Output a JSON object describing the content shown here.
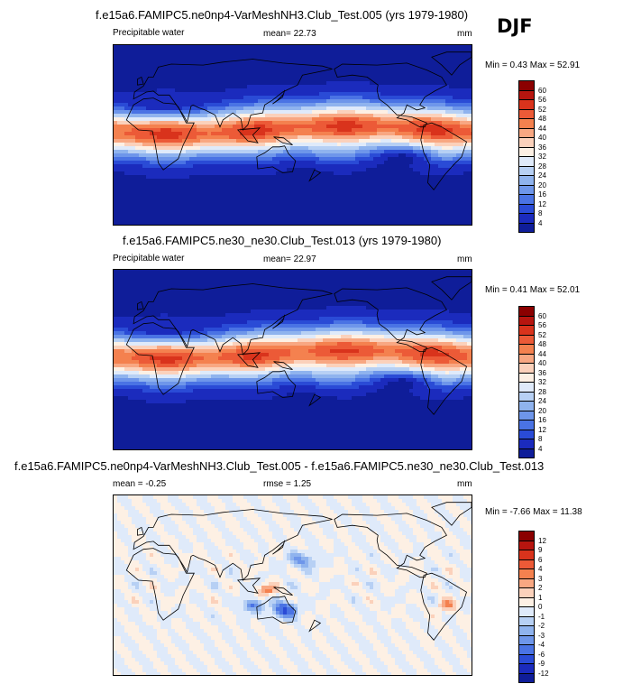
{
  "season": "DJF",
  "panels": [
    {
      "title": "f.e15a6.FAMIPC5.ne0np4-VarMeshNH3.Club_Test.005 (yrs 1979-1980)",
      "left_label": "Precipitable water",
      "mid_label": "mean=  22.73",
      "units": "mm",
      "minmax": "Min =   0.43 Max =  52.91",
      "colorbar": {
        "labels": [
          "60",
          "56",
          "52",
          "48",
          "44",
          "40",
          "36",
          "32",
          "28",
          "24",
          "20",
          "16",
          "12",
          "8",
          "4"
        ],
        "colors": [
          "#8b0000",
          "#b7150f",
          "#d9331c",
          "#ec5a37",
          "#f4814f",
          "#f8a782",
          "#fbd1bb",
          "#fdf0e4",
          "#dfeafa",
          "#b7d0f4",
          "#8fb3ee",
          "#6e96ea",
          "#4a73e4",
          "#2a4bd6",
          "#1b2bbd",
          "#0f1d99"
        ]
      }
    },
    {
      "title": "f.e15a6.FAMIPC5.ne30_ne30.Club_Test.013 (yrs 1979-1980)",
      "left_label": "Precipitable water",
      "mid_label": "mean=  22.97",
      "units": "mm",
      "minmax": "Min =   0.41 Max =  52.01",
      "colorbar": {
        "labels": [
          "60",
          "56",
          "52",
          "48",
          "44",
          "40",
          "36",
          "32",
          "28",
          "24",
          "20",
          "16",
          "12",
          "8",
          "4"
        ],
        "colors": [
          "#8b0000",
          "#b7150f",
          "#d9331c",
          "#ec5a37",
          "#f4814f",
          "#f8a782",
          "#fbd1bb",
          "#fdf0e4",
          "#dfeafa",
          "#b7d0f4",
          "#8fb3ee",
          "#6e96ea",
          "#4a73e4",
          "#2a4bd6",
          "#1b2bbd",
          "#0f1d99"
        ]
      }
    },
    {
      "title": "f.e15a6.FAMIPC5.ne0np4-VarMeshNH3.Club_Test.005 - f.e15a6.FAMIPC5.ne30_ne30.Club_Test.013",
      "left_label": "mean =  -0.25",
      "mid_label": "rmse =   1.25",
      "units": "mm",
      "minmax": "Min =  -7.66 Max =  11.38",
      "colorbar": {
        "labels": [
          "12",
          "9",
          "6",
          "4",
          "3",
          "2",
          "1",
          "0",
          "-1",
          "-2",
          "-3",
          "-4",
          "-6",
          "-9",
          "-12"
        ],
        "colors": [
          "#8b0000",
          "#b7150f",
          "#d9331c",
          "#ec5a37",
          "#f4814f",
          "#f8a782",
          "#fbd1bb",
          "#fdf0e4",
          "#dfeafa",
          "#b7d0f4",
          "#8fb3ee",
          "#6e96ea",
          "#4a73e4",
          "#2a4bd6",
          "#1b2bbd",
          "#0f1d99"
        ]
      }
    }
  ],
  "chart_data": [
    {
      "type": "heatmap",
      "title": "f.e15a6.FAMIPC5.ne0np4-VarMeshNH3.Club_Test.005 (yrs 1979-1980)",
      "variable": "Precipitable water",
      "units": "mm",
      "mean": 22.73,
      "min": 0.43,
      "max": 52.91,
      "contour_levels": [
        4,
        8,
        12,
        16,
        20,
        24,
        28,
        32,
        36,
        40,
        44,
        48,
        52,
        56,
        60
      ],
      "pattern": {
        "equator_value": 50,
        "pole_value": 3,
        "itcz_lat": 0
      }
    },
    {
      "type": "heatmap",
      "title": "f.e15a6.FAMIPC5.ne30_ne30.Club_Test.013 (yrs 1979-1980)",
      "variable": "Precipitable water",
      "units": "mm",
      "mean": 22.97,
      "min": 0.41,
      "max": 52.01,
      "contour_levels": [
        4,
        8,
        12,
        16,
        20,
        24,
        28,
        32,
        36,
        40,
        44,
        48,
        52,
        56,
        60
      ],
      "pattern": {
        "equator_value": 50,
        "pole_value": 3,
        "itcz_lat": 0
      }
    },
    {
      "type": "heatmap",
      "title": "f.e15a6.FAMIPC5.ne0np4-VarMeshNH3.Club_Test.005 - f.e15a6.FAMIPC5.ne30_ne30.Club_Test.013",
      "units": "mm",
      "mean": -0.25,
      "rmse": 1.25,
      "min": -7.66,
      "max": 11.38,
      "contour_levels": [
        -12,
        -9,
        -6,
        -4,
        -3,
        -2,
        -1,
        0,
        1,
        2,
        3,
        4,
        6,
        9,
        12
      ]
    }
  ]
}
